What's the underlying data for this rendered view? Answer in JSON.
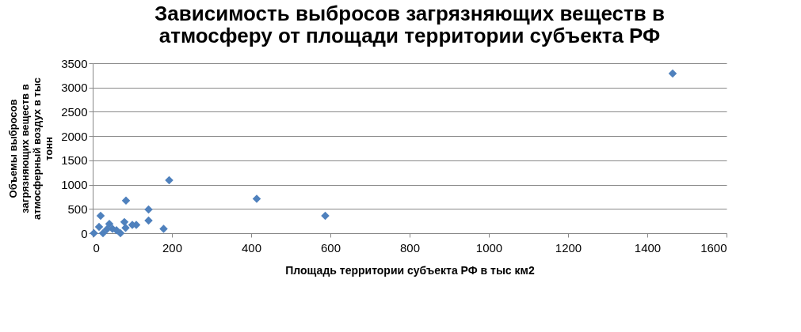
{
  "chart_data": {
    "type": "scatter",
    "title": "Зависимость выбросов загрязняющих веществ в атмосферу от площади территории субъекта РФ",
    "xlabel": "Площадь территории субъекта РФ в тыс км2",
    "ylabel": "Объемы выбросов загрязняющих веществ в атмосферный воздух в тыс тонн",
    "x": [
      1464,
      587,
      414,
      193,
      84,
      141,
      141,
      179,
      20,
      42,
      80,
      110,
      100,
      3,
      26,
      70,
      50,
      83,
      60,
      16,
      36
    ],
    "series": [
      {
        "color": "#4f81bd",
        "values": [
          3290,
          360,
          710,
          1090,
          670,
          490,
          260,
          90,
          360,
          190,
          230,
          170,
          170,
          0,
          0,
          0,
          90,
          110,
          60,
          130,
          80
        ]
      }
    ],
    "xlim": [
      0,
      1600
    ],
    "xticks": [
      0,
      200,
      400,
      600,
      800,
      1000,
      1200,
      1400,
      1600
    ],
    "ylim": [
      0,
      3500
    ],
    "yticks": [
      0,
      500,
      1000,
      1500,
      2000,
      2500,
      3000,
      3500
    ],
    "grid": "y",
    "legend": false,
    "marker": "diamond"
  }
}
